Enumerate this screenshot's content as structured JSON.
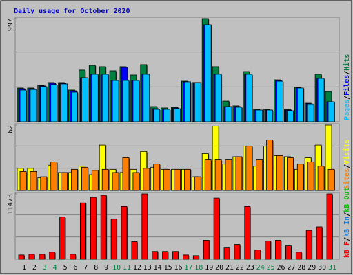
{
  "title": "Daily usage for October 2020",
  "chart_data": [
    {
      "type": "bar",
      "ylim": [
        0,
        997
      ],
      "yticks": [
        997
      ],
      "legend_separator": "/",
      "series": [
        {
          "name": "Pages",
          "color": "#00c0ff",
          "values": [
            306,
            312,
            339,
            359,
            366,
            286,
            425,
            459,
            459,
            399,
            399,
            399,
            459,
            120,
            120,
            126,
            386,
            379,
            937,
            459,
            146,
            140,
            459,
            113,
            113,
            392,
            106,
            326,
            166,
            419,
            193
          ]
        },
        {
          "name": "Files",
          "color": "#0000ff",
          "values": [
            319,
            319,
            346,
            372,
            372,
            299,
            425,
            459,
            452,
            399,
            525,
            399,
            459,
            126,
            120,
            133,
            386,
            379,
            937,
            459,
            146,
            146,
            459,
            113,
            113,
            399,
            113,
            326,
            173,
            419,
            193
          ]
        },
        {
          "name": "Hits",
          "color": "#008040",
          "values": [
            326,
            326,
            352,
            379,
            379,
            306,
            499,
            545,
            532,
            492,
            532,
            452,
            552,
            146,
            133,
            140,
            392,
            379,
            997,
            532,
            199,
            153,
            485,
            120,
            120,
            405,
            120,
            332,
            179,
            459,
            292
          ]
        }
      ]
    },
    {
      "type": "bar",
      "ylim": [
        0,
        62
      ],
      "yticks": [
        62
      ],
      "legend_separator": "/",
      "series": [
        {
          "name": "Sites",
          "color": "#ff8000",
          "values": [
            18,
            18,
            13,
            27,
            17,
            20,
            22,
            19,
            20,
            17,
            31,
            17,
            21,
            25,
            20,
            20,
            20,
            13,
            29,
            29,
            29,
            32,
            42,
            29,
            48,
            33,
            31,
            25,
            27,
            23,
            20
          ]
        },
        {
          "name": "Visits",
          "color": "#ffff00",
          "values": [
            21,
            21,
            12,
            24,
            17,
            17,
            23,
            15,
            43,
            20,
            17,
            20,
            37,
            22,
            20,
            20,
            20,
            13,
            35,
            61,
            25,
            32,
            42,
            23,
            42,
            33,
            32,
            20,
            31,
            43,
            62
          ]
        }
      ]
    },
    {
      "type": "bar",
      "ylim": [
        0,
        11473
      ],
      "yticks": [
        11473
      ],
      "legend_separator": "/",
      "categories": [
        "1",
        "2",
        "3",
        "4",
        "5",
        "6",
        "7",
        "8",
        "9",
        "10",
        "11",
        "12",
        "13",
        "14",
        "15",
        "16",
        "17",
        "18",
        "19",
        "20",
        "21",
        "22",
        "23",
        "24",
        "25",
        "26",
        "27",
        "28",
        "29",
        "30",
        "31"
      ],
      "category_colors": [
        "#000000",
        "#000000",
        "#008040",
        "#008040",
        "#000000",
        "#000000",
        "#000000",
        "#000000",
        "#000000",
        "#008040",
        "#008040",
        "#000000",
        "#000000",
        "#000000",
        "#000000",
        "#000000",
        "#008040",
        "#008040",
        "#000000",
        "#000000",
        "#000000",
        "#000000",
        "#000000",
        "#008040",
        "#008040",
        "#000000",
        "#000000",
        "#000000",
        "#000000",
        "#000000",
        "#008040"
      ],
      "series": [
        {
          "name": "kB F",
          "color": "#ff0000",
          "values": [
            740,
            864,
            864,
            1234,
            7404,
            864,
            9872,
            10859,
            11229,
            7034,
            9255,
            3085,
            11473,
            1357,
            1357,
            1357,
            740,
            617,
            3332,
            10736,
            2098,
            2591,
            9255,
            1604,
            3208,
            3332,
            2345,
            1234,
            5059,
            5676,
            11473
          ]
        },
        {
          "name": "kB In",
          "color": "#0080ff",
          "values": [
            null,
            null,
            null,
            null,
            null,
            null,
            null,
            null,
            null,
            null,
            null,
            null,
            null,
            null,
            null,
            null,
            null,
            null,
            null,
            null,
            null,
            null,
            null,
            null,
            null,
            null,
            null,
            null,
            null,
            null,
            null
          ]
        },
        {
          "name": "kB Out",
          "color": "#00c000",
          "values": [
            null,
            null,
            null,
            null,
            null,
            null,
            null,
            null,
            null,
            null,
            null,
            null,
            null,
            null,
            null,
            null,
            null,
            null,
            null,
            null,
            null,
            null,
            null,
            null,
            null,
            null,
            null,
            null,
            null,
            null,
            null
          ]
        }
      ]
    }
  ]
}
